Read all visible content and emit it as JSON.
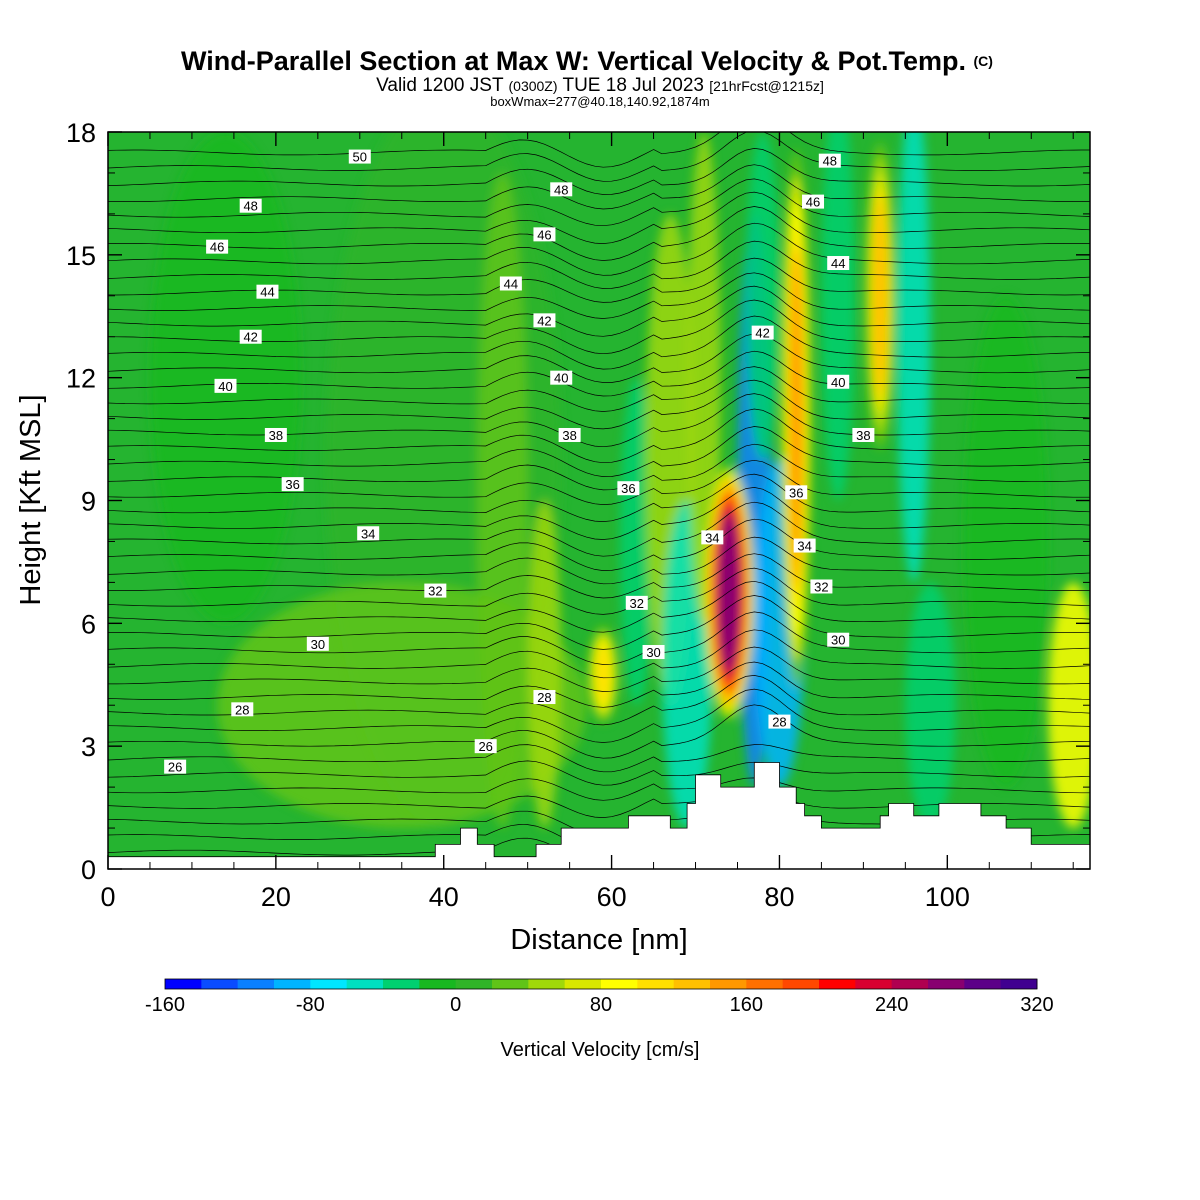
{
  "title": "Wind-Parallel Section at Max W: Vertical Velocity & Pot.Temp.",
  "copyright": "(C)",
  "subtitle": {
    "valid": "Valid 1200 JST",
    "utc": "(0300Z)",
    "date": "TUE 18 Jul 2023",
    "fcst": "[21hrFcst@1215z]"
  },
  "box_note": "boxWmax=277@40.18,140.92,1874m",
  "chart_data": {
    "type": "heatmap",
    "xlabel": "Distance [nm]",
    "ylabel": "Height [Kft MSL]",
    "xlim": [
      0,
      117
    ],
    "ylim": [
      0,
      18
    ],
    "xticks": [
      "0",
      "20",
      "40",
      "60",
      "80",
      "100"
    ],
    "yticks": [
      "0",
      "3",
      "6",
      "9",
      "12",
      "15",
      "18"
    ],
    "colorbar": {
      "label": "Vertical Velocity [cm/s]",
      "ticks": [
        "-160",
        "-80",
        "0",
        "80",
        "160",
        "240",
        "320"
      ],
      "min": -160,
      "max": 320,
      "step": 20,
      "colors": [
        "#0000ff",
        "#0a4cff",
        "#0a80ff",
        "#00b4ff",
        "#00e6ff",
        "#00e0c0",
        "#00d070",
        "#18b820",
        "#30b428",
        "#60c418",
        "#a0d80a",
        "#d8e800",
        "#ffff00",
        "#ffe000",
        "#ffc000",
        "#ff9800",
        "#ff7000",
        "#ff4800",
        "#ff0000",
        "#d80030",
        "#b00050",
        "#880070",
        "#5c0088",
        "#400090"
      ]
    },
    "wmax_cm_s": 277,
    "updraft_cores": [
      {
        "x": 74,
        "ybot": 3.5,
        "ytop": 10,
        "wmax": 277
      },
      {
        "x": 82,
        "ybot": 4,
        "ytop": 18,
        "wmax": 140
      },
      {
        "x": 92,
        "ybot": 10,
        "ytop": 18,
        "wmax": 120
      },
      {
        "x": 59,
        "ybot": 3.5,
        "ytop": 6,
        "wmax": 100
      }
    ],
    "theta_levels": [
      "26",
      "28",
      "30",
      "32",
      "34",
      "36",
      "38",
      "40",
      "42",
      "44",
      "46",
      "48",
      "50"
    ],
    "theta_labels": [
      {
        "text": "50",
        "x": 30,
        "y": 17.4
      },
      {
        "text": "48",
        "x": 17,
        "y": 16.2
      },
      {
        "text": "46",
        "x": 13,
        "y": 15.2
      },
      {
        "text": "44",
        "x": 19,
        "y": 14.1
      },
      {
        "text": "42",
        "x": 17,
        "y": 13.0
      },
      {
        "text": "40",
        "x": 14,
        "y": 11.8
      },
      {
        "text": "38",
        "x": 20,
        "y": 10.6
      },
      {
        "text": "36",
        "x": 22,
        "y": 9.4
      },
      {
        "text": "34",
        "x": 31,
        "y": 8.2
      },
      {
        "text": "32",
        "x": 39,
        "y": 6.8
      },
      {
        "text": "30",
        "x": 25,
        "y": 5.5
      },
      {
        "text": "28",
        "x": 16,
        "y": 3.9
      },
      {
        "text": "26",
        "x": 8,
        "y": 2.5
      },
      {
        "text": "48",
        "x": 54,
        "y": 16.6
      },
      {
        "text": "46",
        "x": 52,
        "y": 15.5
      },
      {
        "text": "44",
        "x": 48,
        "y": 14.3
      },
      {
        "text": "42",
        "x": 52,
        "y": 13.4
      },
      {
        "text": "40",
        "x": 54,
        "y": 12.0
      },
      {
        "text": "38",
        "x": 55,
        "y": 10.6
      },
      {
        "text": "36",
        "x": 62,
        "y": 9.3
      },
      {
        "text": "32",
        "x": 63,
        "y": 6.5
      },
      {
        "text": "30",
        "x": 65,
        "y": 5.3
      },
      {
        "text": "28",
        "x": 52,
        "y": 4.2
      },
      {
        "text": "26",
        "x": 45,
        "y": 3.0
      },
      {
        "text": "34",
        "x": 72,
        "y": 8.1
      },
      {
        "text": "48",
        "x": 86,
        "y": 17.3
      },
      {
        "text": "46",
        "x": 84,
        "y": 16.3
      },
      {
        "text": "44",
        "x": 87,
        "y": 14.8
      },
      {
        "text": "42",
        "x": 78,
        "y": 13.1
      },
      {
        "text": "40",
        "x": 87,
        "y": 11.9
      },
      {
        "text": "38",
        "x": 90,
        "y": 10.6
      },
      {
        "text": "36",
        "x": 82,
        "y": 9.2
      },
      {
        "text": "34",
        "x": 83,
        "y": 7.9
      },
      {
        "text": "32",
        "x": 85,
        "y": 6.9
      },
      {
        "text": "30",
        "x": 87,
        "y": 5.6
      },
      {
        "text": "28",
        "x": 80,
        "y": 3.6
      }
    ],
    "terrain": [
      {
        "x": 0,
        "y": 0.3
      },
      {
        "x": 39,
        "y": 0.3
      },
      {
        "x": 39,
        "y": 0.6
      },
      {
        "x": 42,
        "y": 0.6
      },
      {
        "x": 42,
        "y": 1.0
      },
      {
        "x": 44,
        "y": 1.0
      },
      {
        "x": 44,
        "y": 0.6
      },
      {
        "x": 46,
        "y": 0.6
      },
      {
        "x": 46,
        "y": 0.3
      },
      {
        "x": 51,
        "y": 0.3
      },
      {
        "x": 51,
        "y": 0.6
      },
      {
        "x": 54,
        "y": 0.6
      },
      {
        "x": 54,
        "y": 1.0
      },
      {
        "x": 62,
        "y": 1.0
      },
      {
        "x": 62,
        "y": 1.3
      },
      {
        "x": 67,
        "y": 1.3
      },
      {
        "x": 67,
        "y": 1.0
      },
      {
        "x": 69,
        "y": 1.0
      },
      {
        "x": 69,
        "y": 1.6
      },
      {
        "x": 70,
        "y": 1.6
      },
      {
        "x": 70,
        "y": 2.3
      },
      {
        "x": 73,
        "y": 2.3
      },
      {
        "x": 73,
        "y": 2.0
      },
      {
        "x": 77,
        "y": 2.0
      },
      {
        "x": 77,
        "y": 2.6
      },
      {
        "x": 80,
        "y": 2.6
      },
      {
        "x": 80,
        "y": 2.0
      },
      {
        "x": 82,
        "y": 2.0
      },
      {
        "x": 82,
        "y": 1.6
      },
      {
        "x": 83,
        "y": 1.6
      },
      {
        "x": 83,
        "y": 1.3
      },
      {
        "x": 85,
        "y": 1.3
      },
      {
        "x": 85,
        "y": 1.0
      },
      {
        "x": 92,
        "y": 1.0
      },
      {
        "x": 92,
        "y": 1.3
      },
      {
        "x": 93,
        "y": 1.3
      },
      {
        "x": 93,
        "y": 1.6
      },
      {
        "x": 96,
        "y": 1.6
      },
      {
        "x": 96,
        "y": 1.3
      },
      {
        "x": 99,
        "y": 1.3
      },
      {
        "x": 99,
        "y": 1.6
      },
      {
        "x": 104,
        "y": 1.6
      },
      {
        "x": 104,
        "y": 1.3
      },
      {
        "x": 107,
        "y": 1.3
      },
      {
        "x": 107,
        "y": 1.0
      },
      {
        "x": 110,
        "y": 1.0
      },
      {
        "x": 110,
        "y": 0.6
      },
      {
        "x": 117,
        "y": 0.6
      }
    ]
  }
}
